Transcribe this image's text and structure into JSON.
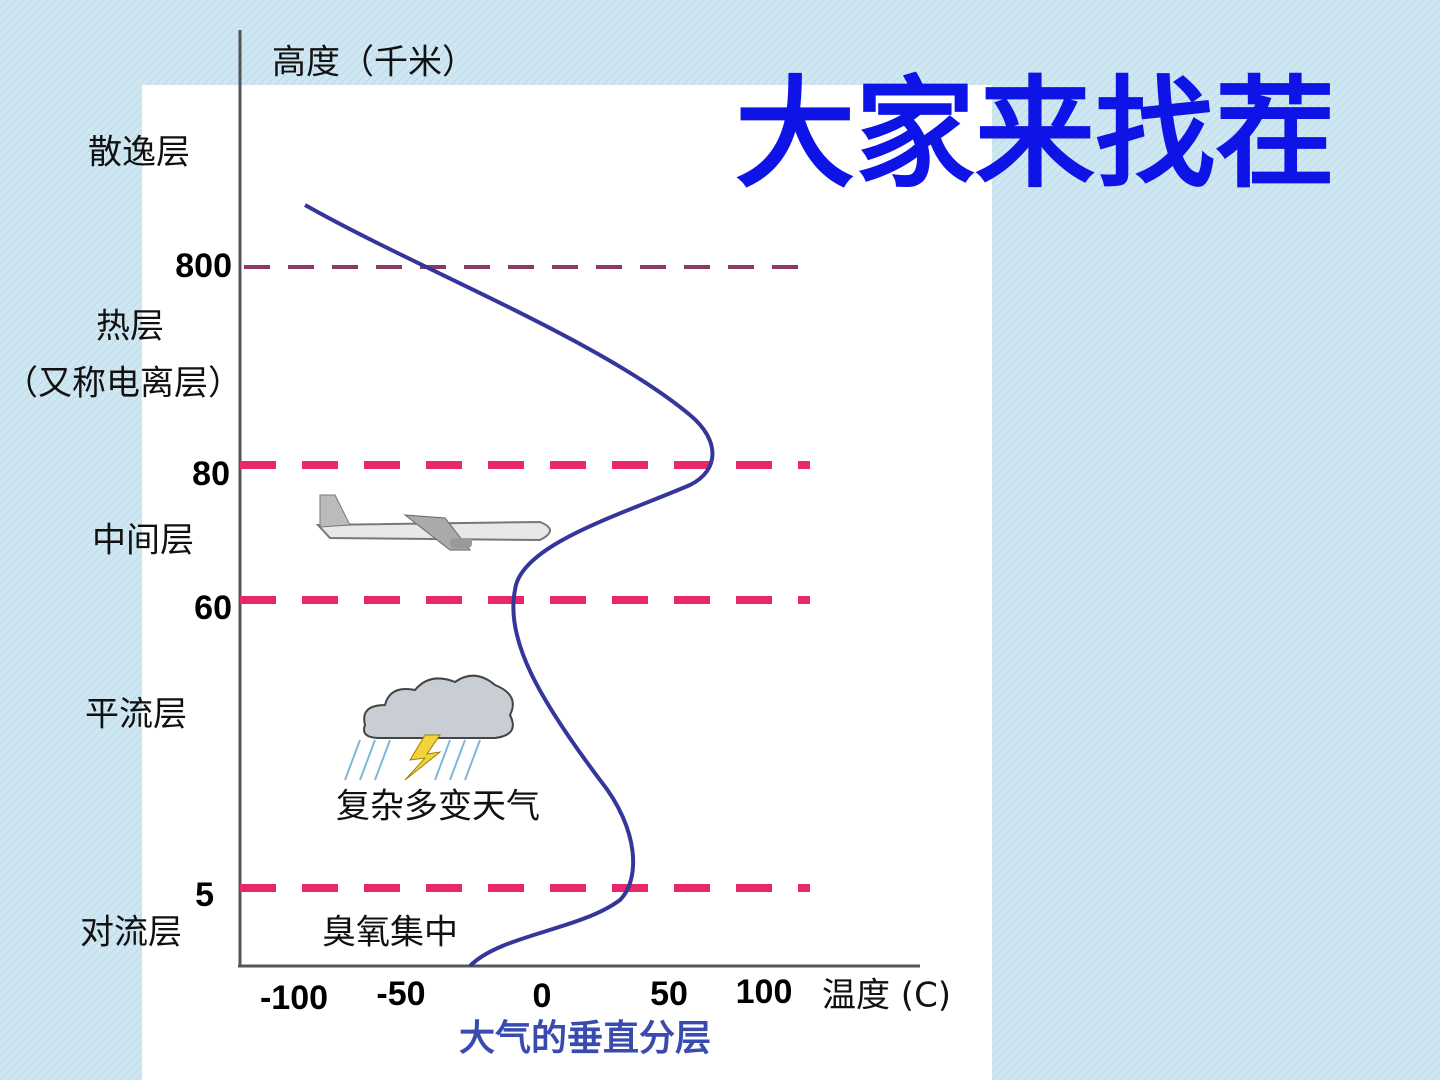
{
  "slide": {
    "title": "大家来找茬",
    "caption": "大气的垂直分层",
    "y_axis_label": "高度（千米）",
    "x_axis_label": "温度 (C)",
    "altitude_labels": [
      "800",
      "80",
      "60",
      "5"
    ],
    "temperature_labels": [
      "-100",
      "-50",
      "0",
      "50",
      "100"
    ],
    "layers": [
      "散逸层",
      "热层",
      "（又称电离层）",
      "中间层",
      "平流层",
      "对流层"
    ],
    "annotations": [
      "复杂多变天气",
      "臭氧集中"
    ]
  }
}
